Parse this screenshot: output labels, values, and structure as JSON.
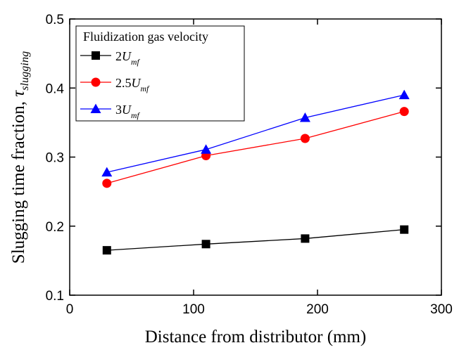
{
  "chart_data": {
    "type": "line",
    "x_label": "Distance from distributor (mm)",
    "y_label": "Slugging time fraction, τslugging",
    "legend_title": "Fluidization gas velocity",
    "legend_position": "upper left",
    "x": [
      30,
      110,
      190,
      270
    ],
    "series": [
      {
        "name": "2Umf",
        "color": "#000000",
        "marker": "square",
        "values": [
          0.165,
          0.174,
          0.182,
          0.195
        ]
      },
      {
        "name": "2.5Umf",
        "color": "#ff0000",
        "marker": "circle",
        "values": [
          0.262,
          0.302,
          0.327,
          0.366
        ]
      },
      {
        "name": "3Umf",
        "color": "#0000ff",
        "marker": "triangle",
        "values": [
          0.278,
          0.311,
          0.357,
          0.39
        ]
      }
    ],
    "xlim": [
      0,
      300
    ],
    "xticks": [
      0,
      100,
      200,
      300
    ],
    "ylim": [
      0.1,
      0.5
    ],
    "yticks": [
      0.1,
      0.2,
      0.3,
      0.4,
      0.5
    ]
  }
}
